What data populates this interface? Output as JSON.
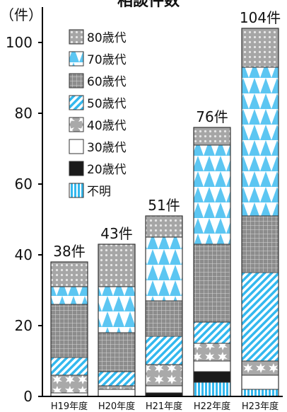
{
  "chart_data": {
    "type": "bar",
    "stacked": true,
    "title": "相談件数",
    "ylabel": "（件）",
    "ylim": [
      0,
      110
    ],
    "yticks": [
      0,
      20,
      40,
      60,
      80,
      100
    ],
    "grid": false,
    "legend_position": "top-left",
    "categories": [
      "H19年度",
      "H20年度",
      "H21年度",
      "H22年度",
      "H23年度"
    ],
    "totals": [
      "38件",
      "43件",
      "51件",
      "76件",
      "104件"
    ],
    "series": [
      {
        "name": "不明",
        "values": [
          0,
          0,
          0,
          4,
          2
        ],
        "color": "#33b8ee",
        "pattern": "vstripes"
      },
      {
        "name": "20歳代",
        "values": [
          0,
          0,
          1,
          3,
          0
        ],
        "color": "#1a1a1a",
        "pattern": "solid"
      },
      {
        "name": "30歳代",
        "values": [
          1,
          2,
          2,
          3,
          4
        ],
        "color": "#ffffff",
        "pattern": "solid"
      },
      {
        "name": "40歳代",
        "values": [
          5,
          1,
          6,
          5,
          4
        ],
        "color": "#a6a6a6",
        "pattern": "stars"
      },
      {
        "name": "50歳代",
        "values": [
          5,
          4,
          8,
          6,
          25
        ],
        "color": "#33b8ee",
        "pattern": "diag"
      },
      {
        "name": "60歳代",
        "values": [
          15,
          11,
          10,
          22,
          16
        ],
        "color": "#8a8a8a",
        "pattern": "grid"
      },
      {
        "name": "70歳代",
        "values": [
          5,
          13,
          18,
          28,
          42
        ],
        "color": "#5cc6f2",
        "pattern": "triangles"
      },
      {
        "name": "80歳代",
        "values": [
          7,
          12,
          6,
          5,
          11
        ],
        "color": "#a6a6a6",
        "pattern": "dots"
      }
    ],
    "legend_order": [
      "80歳代",
      "70歳代",
      "60歳代",
      "50歳代",
      "40歳代",
      "30歳代",
      "20歳代",
      "不明"
    ]
  }
}
